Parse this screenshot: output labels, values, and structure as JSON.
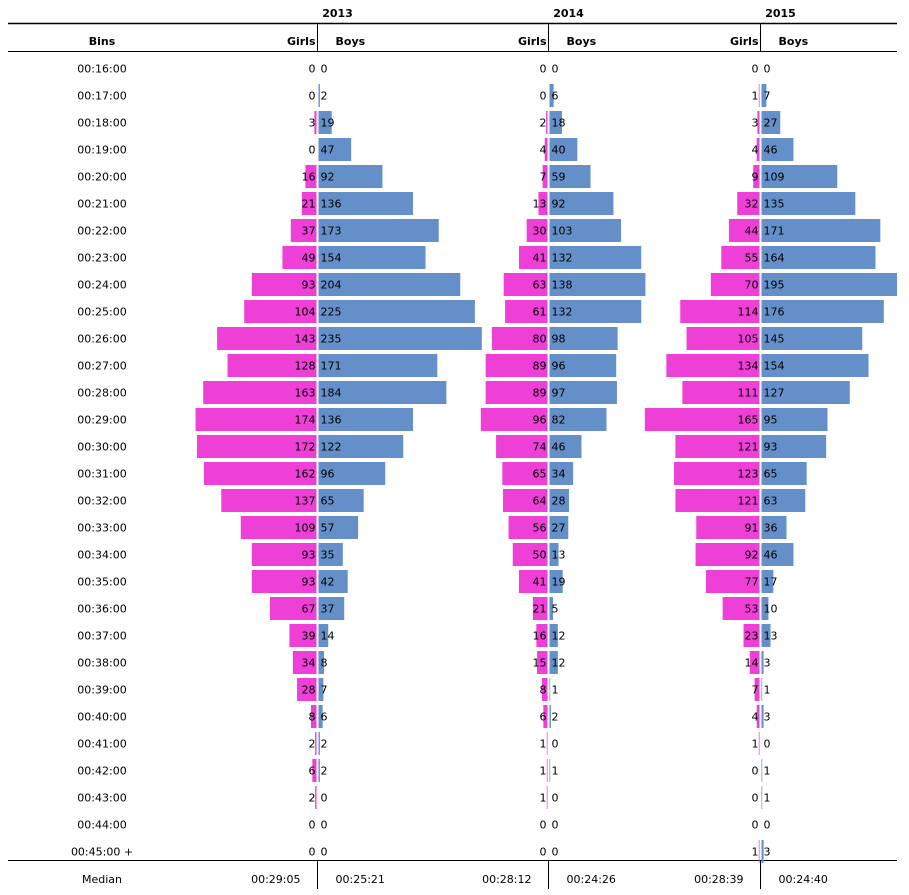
{
  "chart_data": {
    "type": "bar",
    "subtype": "population-pyramid",
    "category_label": "Bins",
    "left_label": "Girls",
    "right_label": "Boys",
    "footer_label": "Median",
    "colors": {
      "girls": "#EE3FD6",
      "boys": "#648FC8"
    },
    "categories": [
      "00:16:00",
      "00:17:00",
      "00:18:00",
      "00:19:00",
      "00:20:00",
      "00:21:00",
      "00:22:00",
      "00:23:00",
      "00:24:00",
      "00:25:00",
      "00:26:00",
      "00:27:00",
      "00:28:00",
      "00:29:00",
      "00:30:00",
      "00:31:00",
      "00:32:00",
      "00:33:00",
      "00:34:00",
      "00:35:00",
      "00:36:00",
      "00:37:00",
      "00:38:00",
      "00:39:00",
      "00:40:00",
      "00:41:00",
      "00:42:00",
      "00:43:00",
      "00:44:00",
      "00:45:00 +"
    ],
    "panels": [
      {
        "year": "2013",
        "girls": [
          0,
          0,
          3,
          0,
          16,
          21,
          37,
          49,
          93,
          104,
          143,
          128,
          163,
          174,
          172,
          162,
          137,
          109,
          93,
          93,
          67,
          39,
          34,
          28,
          8,
          2,
          6,
          2,
          0,
          0
        ],
        "boys": [
          0,
          2,
          19,
          47,
          92,
          136,
          173,
          154,
          204,
          225,
          235,
          171,
          184,
          136,
          122,
          96,
          65,
          57,
          35,
          42,
          37,
          14,
          8,
          7,
          6,
          2,
          2,
          0,
          0,
          0
        ],
        "median_girls": "00:29:05",
        "median_boys": "00:25:21"
      },
      {
        "year": "2014",
        "girls": [
          0,
          0,
          2,
          4,
          7,
          13,
          30,
          41,
          63,
          61,
          80,
          89,
          89,
          96,
          74,
          65,
          64,
          56,
          50,
          41,
          21,
          16,
          15,
          8,
          6,
          1,
          1,
          1,
          0,
          0
        ],
        "boys": [
          0,
          6,
          18,
          40,
          59,
          92,
          103,
          132,
          138,
          132,
          98,
          96,
          97,
          82,
          46,
          34,
          28,
          27,
          13,
          19,
          5,
          12,
          12,
          1,
          2,
          0,
          1,
          0,
          0,
          0
        ],
        "median_girls": "00:28:12",
        "median_boys": "00:24:26"
      },
      {
        "year": "2015",
        "girls": [
          0,
          1,
          3,
          4,
          9,
          32,
          44,
          55,
          70,
          114,
          105,
          134,
          111,
          165,
          121,
          123,
          121,
          91,
          92,
          77,
          53,
          23,
          14,
          7,
          4,
          1,
          0,
          0,
          0,
          1
        ],
        "boys": [
          0,
          7,
          27,
          46,
          109,
          135,
          171,
          164,
          195,
          176,
          145,
          154,
          127,
          95,
          93,
          65,
          63,
          36,
          46,
          17,
          10,
          13,
          3,
          1,
          3,
          0,
          1,
          1,
          0,
          3
        ],
        "median_girls": "00:28:39",
        "median_boys": "00:24:40"
      }
    ]
  }
}
